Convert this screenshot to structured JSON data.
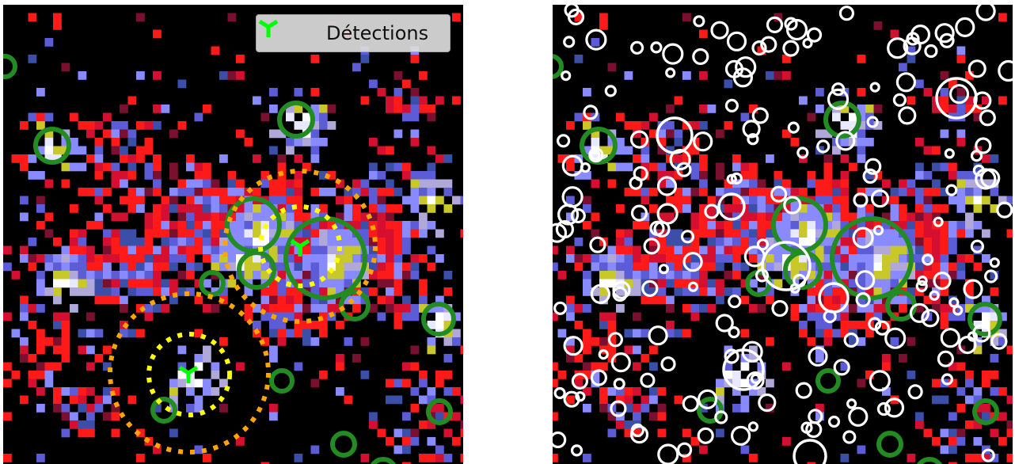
{
  "legend": {
    "label": "Détections",
    "marker_color": "#00ff00",
    "marker_icon": "tri-down-marker-icon"
  },
  "colors": {
    "background": "#000000",
    "source_ring": "#228b22",
    "candidate_ring": "#ffffff",
    "outer_region": "#ffa500",
    "inner_region": "#ffff00",
    "detection": "#00ff00",
    "pixel_palette": [
      "#ff1a1a",
      "#d40f2f",
      "#7a1030",
      "#8a8aff",
      "#5c5cd6",
      "#3b4fa8",
      "#b0a8d8",
      "#e8e8ff",
      "#ffffff",
      "#c8c82a",
      "#a8a070",
      "#2a4a9a"
    ]
  },
  "panels": [
    {
      "name": "left",
      "shows_detections": true,
      "shows_candidates": false
    },
    {
      "name": "right",
      "shows_detections": false,
      "shows_candidates": true
    }
  ]
}
